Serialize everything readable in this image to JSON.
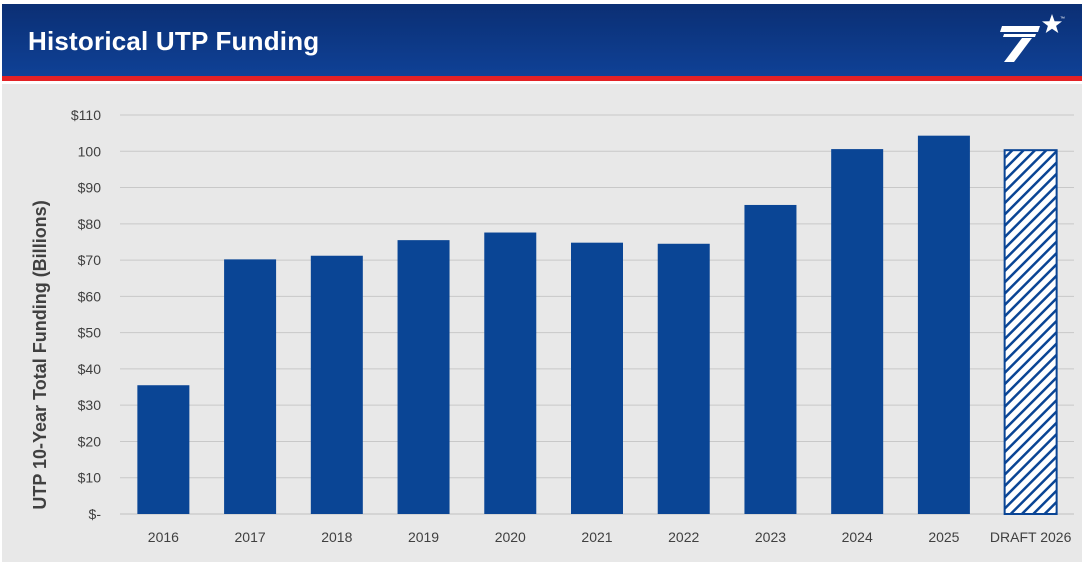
{
  "header": {
    "title": "Historical UTP Funding",
    "logo_icon": "txdot-star-logo-icon",
    "logo_tm": "™"
  },
  "colors": {
    "header_bg": "#0f4196",
    "accent_rule": "#e32125",
    "bar": "#0a4595",
    "chart_bg": "#e8e8e8",
    "grid": "#c8c8c8",
    "text": "#404040"
  },
  "chart_data": {
    "type": "bar",
    "title": "",
    "xlabel": "",
    "ylabel": "UTP 10-Year Total Funding (Billions)",
    "categories": [
      "2016",
      "2017",
      "2018",
      "2019",
      "2020",
      "2021",
      "2022",
      "2023",
      "2024",
      "2025",
      "DRAFT 2026"
    ],
    "values": [
      35.5,
      70.2,
      71.2,
      75.5,
      77.6,
      74.8,
      74.5,
      85.2,
      100.6,
      104.3,
      100.3
    ],
    "hatched": [
      false,
      false,
      false,
      false,
      false,
      false,
      false,
      false,
      false,
      false,
      true
    ],
    "ylim": [
      0,
      110
    ],
    "yticks": [
      0,
      10,
      20,
      30,
      40,
      50,
      60,
      70,
      80,
      90,
      100,
      110
    ],
    "ytick_labels": [
      "$-",
      "$10",
      "$20",
      "$30",
      "$40",
      "$50",
      "$60",
      "$70",
      "$80",
      "$90",
      "100",
      "$110"
    ],
    "grid": true,
    "legend": "none"
  }
}
